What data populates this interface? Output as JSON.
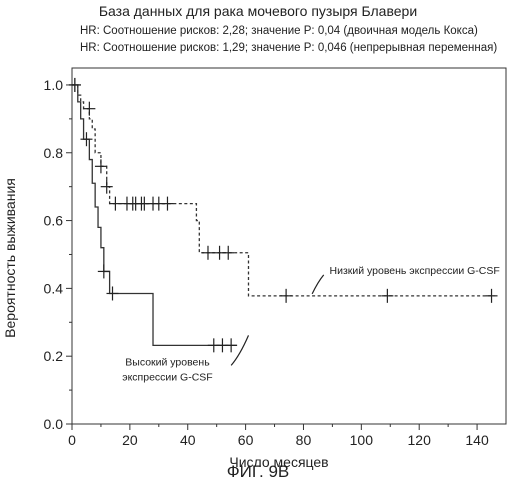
{
  "title": "База данных для рака мочевого пузыря Блавери",
  "hr_lines": [
    "HR: Соотношение рисков: 2,28; значение P: 0,04 (двоичная модель Кокса)",
    "HR: Соотношение рисков: 1,29; значение P: 0,046 (непрерывная переменная)"
  ],
  "figure_caption": "ФИГ. 9В",
  "chart_data": {
    "type": "line",
    "subtype": "kaplan-meier-step",
    "xlabel": "Число месяцев",
    "ylabel": "Вероятность выживания",
    "xlim": [
      0,
      150
    ],
    "ylim": [
      0,
      1.05
    ],
    "x_ticks": [
      0,
      20,
      40,
      60,
      80,
      100,
      120,
      140
    ],
    "y_ticks": [
      0.0,
      0.2,
      0.4,
      0.6,
      0.8,
      1.0
    ],
    "y_tick_labels": [
      "0.0",
      "0.2",
      "0.4",
      "0.6",
      "0.8",
      "1.0"
    ],
    "grid": false,
    "series": [
      {
        "name": "Низкий уровень экспрессии G-CSF",
        "style": "dashed",
        "color": "#333333",
        "steps": [
          [
            0,
            1.0
          ],
          [
            2,
            0.97
          ],
          [
            3,
            0.95
          ],
          [
            4,
            0.93
          ],
          [
            6,
            0.9
          ],
          [
            7,
            0.87
          ],
          [
            8,
            0.8
          ],
          [
            10,
            0.76
          ],
          [
            12,
            0.7
          ],
          [
            13,
            0.65
          ],
          [
            43,
            0.6
          ],
          [
            44,
            0.505
          ],
          [
            61,
            0.378
          ],
          [
            146,
            0.378
          ]
        ],
        "censored": [
          [
            1,
            1.0
          ],
          [
            6,
            0.93
          ],
          [
            10,
            0.76
          ],
          [
            12,
            0.7
          ],
          [
            15,
            0.65
          ],
          [
            19,
            0.65
          ],
          [
            21,
            0.65
          ],
          [
            22,
            0.65
          ],
          [
            24,
            0.65
          ],
          [
            25,
            0.65
          ],
          [
            28,
            0.65
          ],
          [
            30,
            0.65
          ],
          [
            33,
            0.65
          ],
          [
            47,
            0.505
          ],
          [
            51,
            0.505
          ],
          [
            54,
            0.505
          ],
          [
            74,
            0.378
          ],
          [
            109,
            0.378
          ],
          [
            145,
            0.378
          ]
        ],
        "annotation": "Низкий уровень экспрессии G-CSF"
      },
      {
        "name": "Высокий уровень экспрессии G-CSF",
        "style": "solid",
        "color": "#333333",
        "steps": [
          [
            0,
            1.0
          ],
          [
            2,
            0.95
          ],
          [
            3,
            0.9
          ],
          [
            4,
            0.84
          ],
          [
            6,
            0.78
          ],
          [
            7,
            0.71
          ],
          [
            8,
            0.64
          ],
          [
            9,
            0.58
          ],
          [
            10,
            0.52
          ],
          [
            11,
            0.45
          ],
          [
            13,
            0.385
          ],
          [
            28,
            0.232
          ],
          [
            57,
            0.232
          ]
        ],
        "censored": [
          [
            1,
            1.0
          ],
          [
            5,
            0.84
          ],
          [
            11,
            0.45
          ],
          [
            14,
            0.385
          ],
          [
            49,
            0.232
          ],
          [
            52,
            0.232
          ],
          [
            55,
            0.232
          ]
        ],
        "annotation": "Высокий уровень\nэкспрессии G-CSF"
      }
    ]
  }
}
